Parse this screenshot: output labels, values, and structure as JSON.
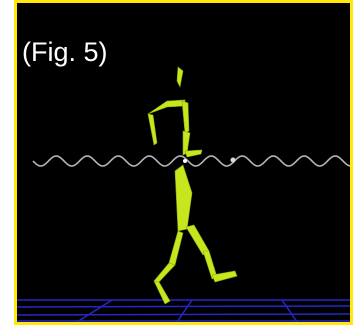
{
  "figure": {
    "label": "(Fig. 5)"
  },
  "colors": {
    "frame_border": "#ffe80a",
    "background": "#000000",
    "figure_fill": "#c8e61e",
    "figure_shade": "#8fa612",
    "trajectory": "#b4b4b4",
    "floor_grid": "#2626c8",
    "label_text": "#ffffff"
  },
  "scene": {
    "subject": "walking-stick-figure",
    "trajectory_curve": "sine-wave-path",
    "ground": "blue-perspective-grid"
  }
}
